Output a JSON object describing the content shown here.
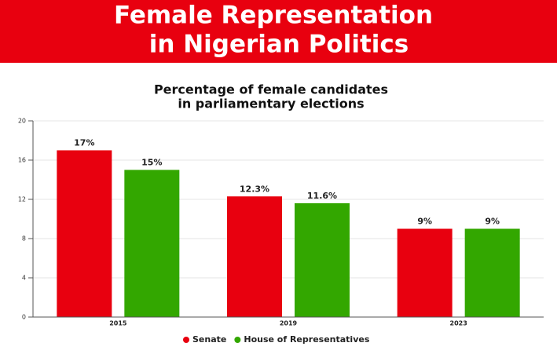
{
  "header": {
    "title": [
      "Female Representation",
      "in Nigerian Politics"
    ]
  },
  "chart_data": {
    "type": "bar",
    "title": [
      "Percentage of female candidates",
      "in parliamentary elections"
    ],
    "categories": [
      "2015",
      "2019",
      "2023"
    ],
    "series": [
      {
        "name": "Senate",
        "color": "#e8000f",
        "values": [
          17,
          12.3,
          9
        ],
        "value_labels": [
          "17%",
          "12.3%",
          "9%"
        ]
      },
      {
        "name": "House of Representatives",
        "color": "#33a700",
        "values": [
          15,
          11.6,
          9
        ],
        "value_labels": [
          "15%",
          "11.6%",
          "9%"
        ]
      }
    ],
    "ylim": [
      0,
      20
    ],
    "yticks": [
      0,
      4,
      8,
      12,
      16,
      20
    ],
    "grid": true,
    "legend": "bottom"
  }
}
